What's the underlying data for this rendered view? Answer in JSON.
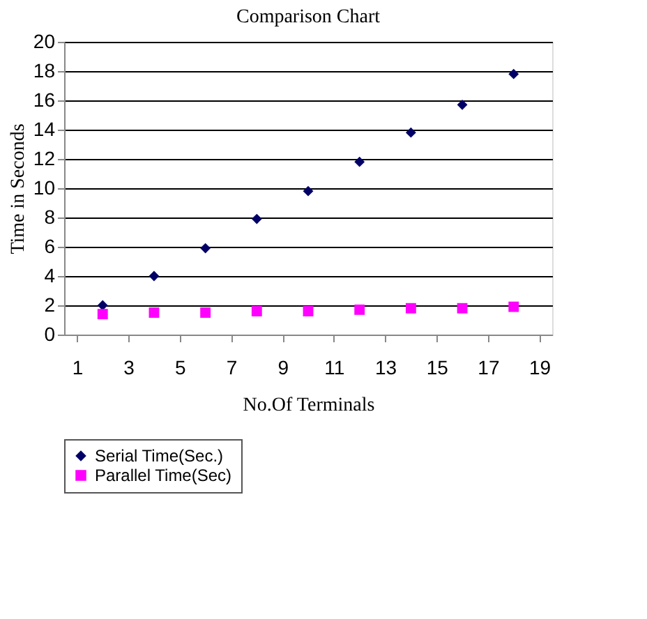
{
  "chart_data": {
    "type": "scatter",
    "title": "Comparison Chart",
    "xlabel": "No.Of Terminals",
    "ylabel": "Time in Seconds",
    "x": [
      2,
      4,
      6,
      8,
      10,
      12,
      14,
      16,
      18
    ],
    "series": [
      {
        "name": "Serial Time(Sec.)",
        "color": "#000066",
        "marker": "diamond",
        "values": [
          2,
          4,
          5.9,
          7.9,
          9.8,
          11.8,
          13.8,
          15.7,
          17.8
        ]
      },
      {
        "name": "Parallel Time(Sec)",
        "color": "#ff00ff",
        "marker": "square",
        "values": [
          1.4,
          1.5,
          1.5,
          1.6,
          1.6,
          1.7,
          1.8,
          1.8,
          1.9
        ]
      }
    ],
    "xlim": [
      0.5,
      19.5
    ],
    "xticks": [
      1,
      3,
      5,
      7,
      9,
      11,
      13,
      15,
      17,
      19
    ],
    "ylim": [
      0,
      20
    ],
    "yticks": [
      0,
      2,
      4,
      6,
      8,
      10,
      12,
      14,
      16,
      18,
      20
    ],
    "grid": "y",
    "legend": "bottom"
  }
}
